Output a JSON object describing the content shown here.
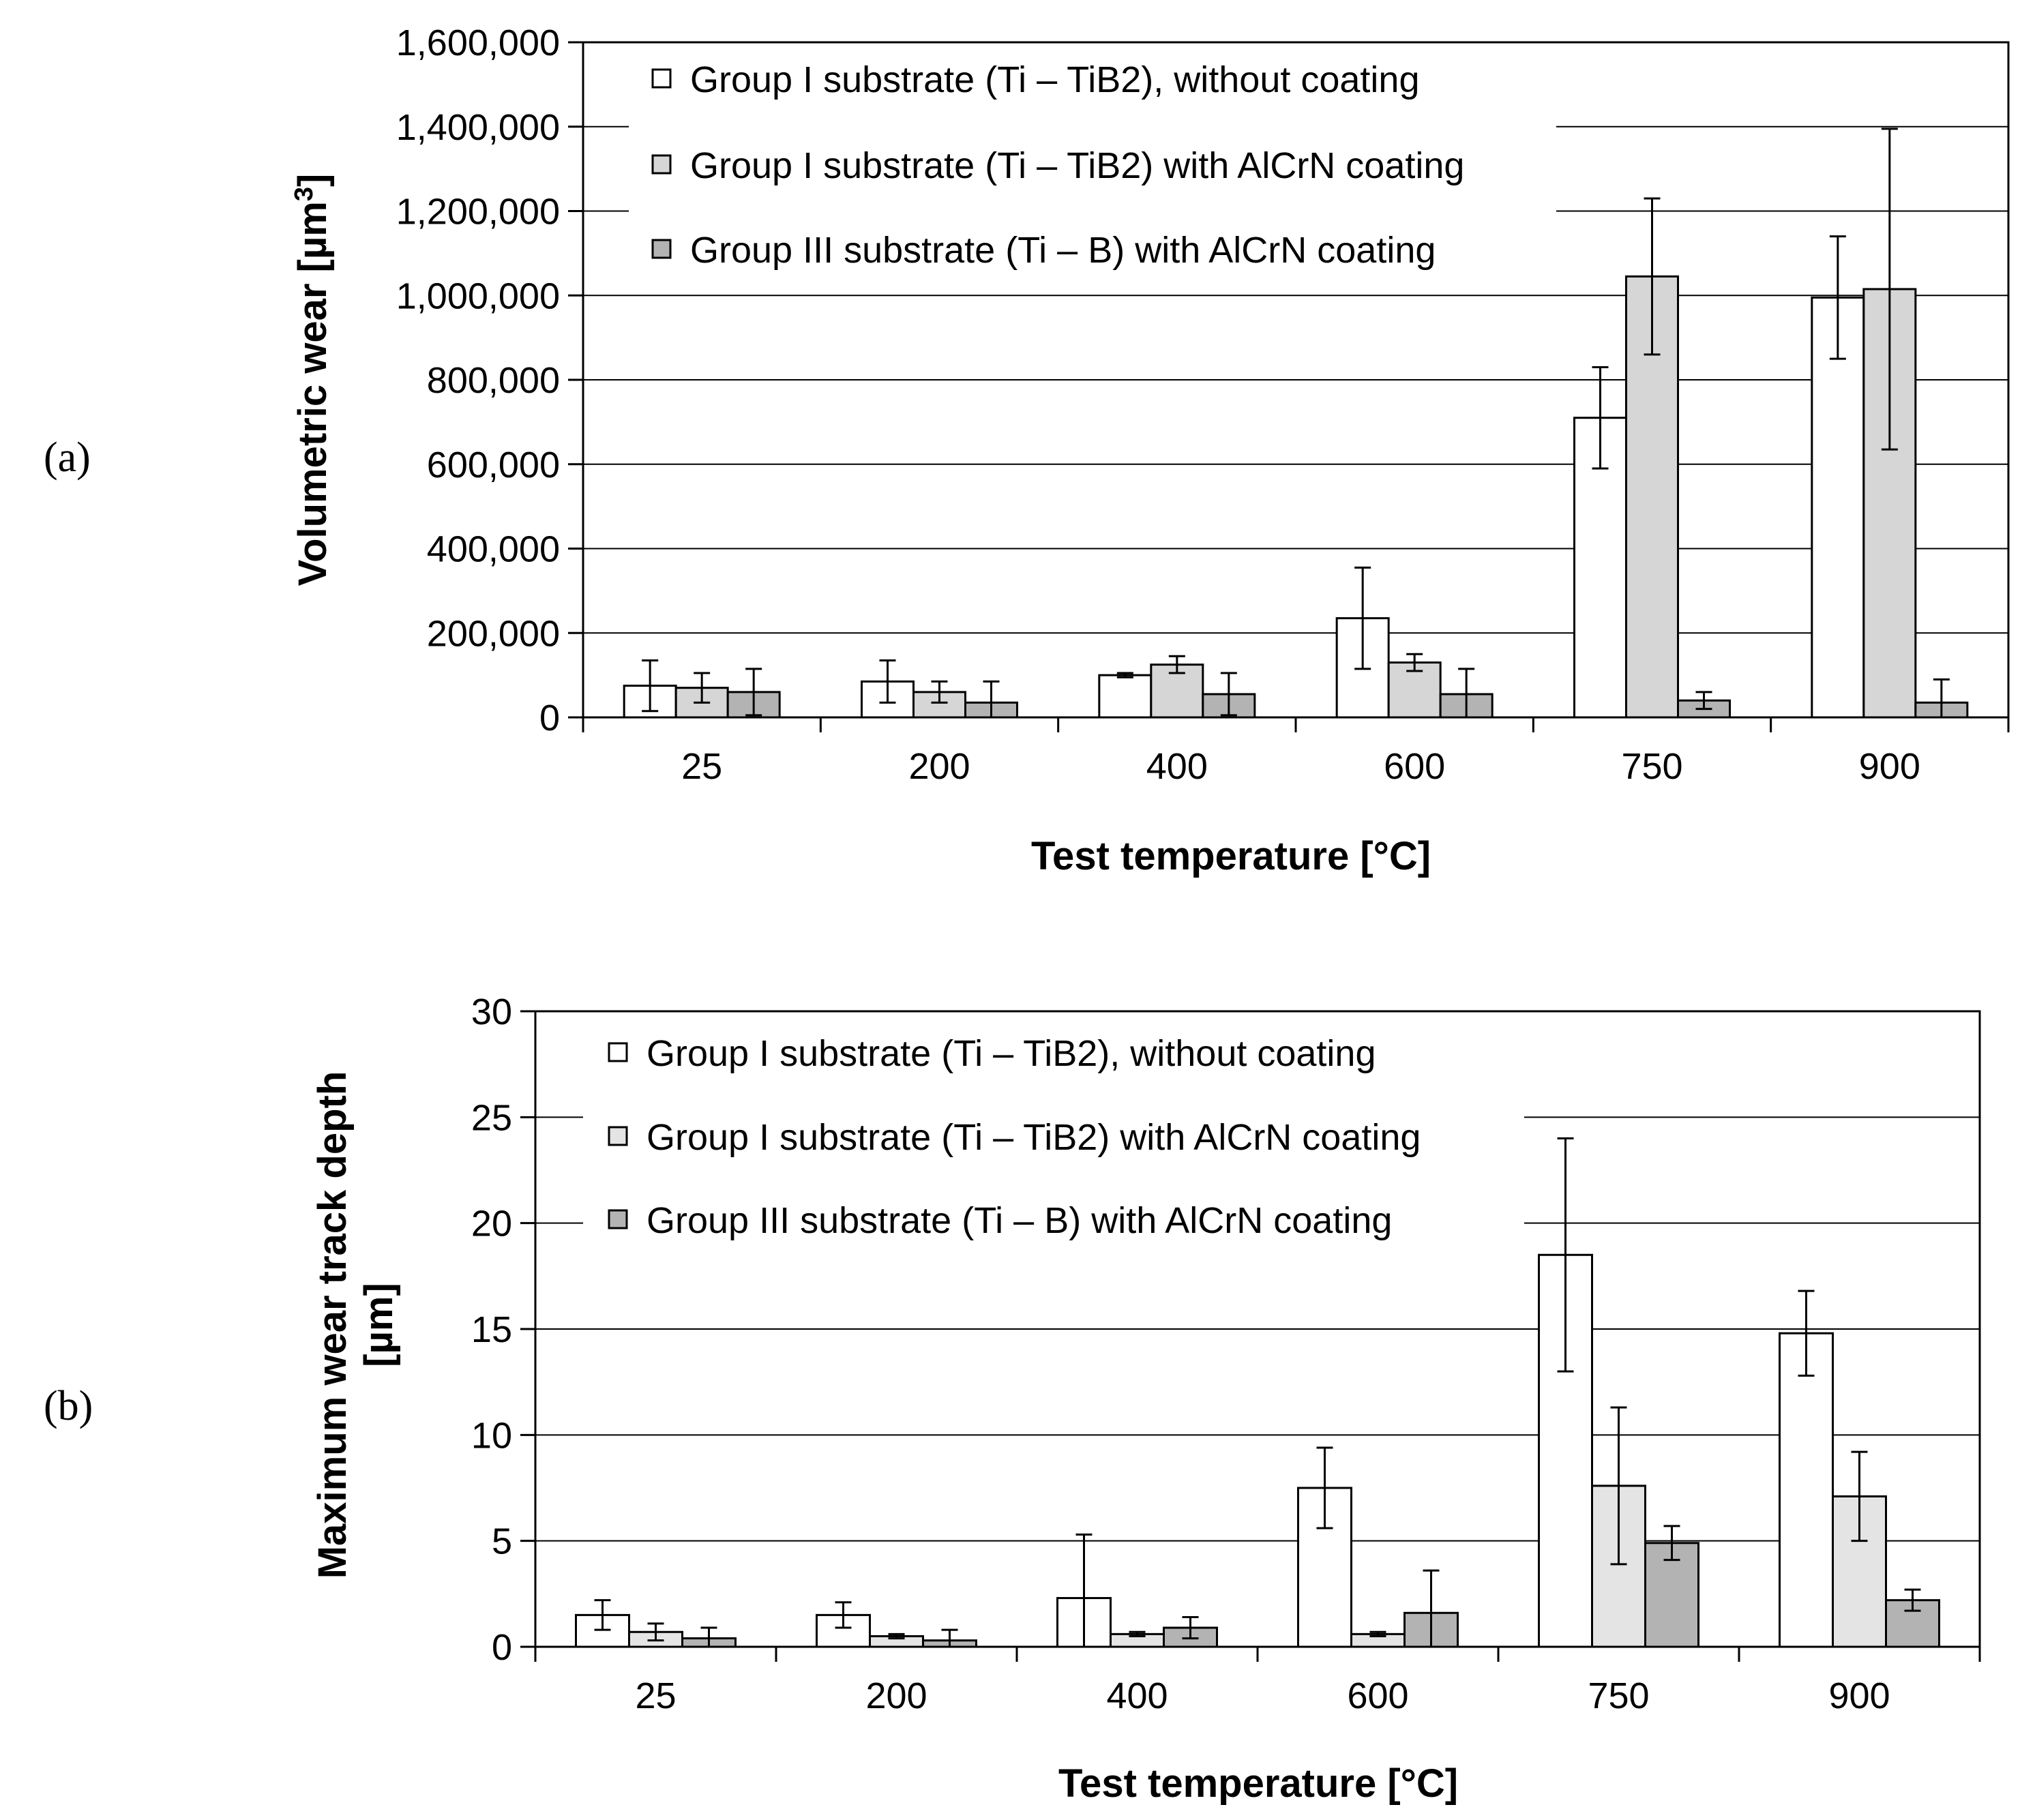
{
  "figure": {
    "panel_a_label": "(a)",
    "panel_b_label": "(b)"
  },
  "legend": [
    {
      "label": "Group I substrate (Ti – TiB2), without coating",
      "color": "#ffffff"
    },
    {
      "label": "Group I substrate (Ti – TiB2) with AlCrN coating",
      "color_a": "#d6d6d6",
      "color_b": "#e4e4e4"
    },
    {
      "label": "Group III substrate (Ti – B) with AlCrN coating",
      "color": "#b3b3b3"
    }
  ],
  "chart_data": [
    {
      "type": "bar",
      "panel": "(a)",
      "categories": [
        "25",
        "200",
        "400",
        "600",
        "750",
        "900"
      ],
      "xlabel": "Test temperature [°C]",
      "ylabel": "Volumetric wear [µm",
      "ylabel_sup": "3",
      "ylabel_end": "]",
      "ylim": [
        0,
        1600000
      ],
      "yticks": [
        0,
        200000,
        400000,
        600000,
        800000,
        1000000,
        1200000,
        1400000,
        1600000
      ],
      "ytick_labels": [
        "0",
        "200,000",
        "400,000",
        "600,000",
        "800,000",
        "1,000,000",
        "1,200,000",
        "1,400,000",
        "1,600,000"
      ],
      "grid": true,
      "legend_position": "top-left",
      "series": [
        {
          "name": "Group I substrate (Ti – TiB2), without coating",
          "values": [
            75000,
            85000,
            100000,
            235000,
            710000,
            995000
          ],
          "errors": [
            60000,
            50000,
            5000,
            120000,
            120000,
            145000
          ]
        },
        {
          "name": "Group I substrate (Ti – TiB2) with AlCrN coating",
          "values": [
            70000,
            60000,
            125000,
            130000,
            1045000,
            1015000
          ],
          "errors": [
            35000,
            25000,
            20000,
            20000,
            185000,
            380000
          ]
        },
        {
          "name": "Group III substrate (Ti – B) with AlCrN coating",
          "values": [
            60000,
            35000,
            55000,
            55000,
            40000,
            35000
          ],
          "errors": [
            55000,
            50000,
            50000,
            60000,
            20000,
            55000
          ]
        }
      ]
    },
    {
      "type": "bar",
      "panel": "(b)",
      "categories": [
        "25",
        "200",
        "400",
        "600",
        "750",
        "900"
      ],
      "xlabel": "Test temperature [°C]",
      "ylabel_line1": "Maximum wear track depth",
      "ylabel_line2": "[µm]",
      "ylim": [
        0,
        30
      ],
      "yticks": [
        0,
        5,
        10,
        15,
        20,
        25,
        30
      ],
      "ytick_labels": [
        "0",
        "5",
        "10",
        "15",
        "20",
        "25",
        "30"
      ],
      "grid": true,
      "legend_position": "top-left",
      "series": [
        {
          "name": "Group I substrate (Ti – TiB2), without coating",
          "values": [
            1.5,
            1.5,
            2.3,
            7.5,
            18.5,
            14.8
          ],
          "errors": [
            0.7,
            0.6,
            3.0,
            1.9,
            5.5,
            2.0
          ]
        },
        {
          "name": "Group I substrate (Ti – TiB2) with AlCrN coating",
          "values": [
            0.7,
            0.5,
            0.6,
            0.6,
            7.6,
            7.1
          ],
          "errors": [
            0.4,
            0.1,
            0.1,
            0.1,
            3.7,
            2.1
          ]
        },
        {
          "name": "Group III substrate (Ti – B) with AlCrN coating",
          "values": [
            0.4,
            0.3,
            0.9,
            1.6,
            4.9,
            2.2
          ],
          "errors": [
            0.5,
            0.5,
            0.5,
            2.0,
            0.8,
            0.5
          ]
        }
      ]
    }
  ]
}
